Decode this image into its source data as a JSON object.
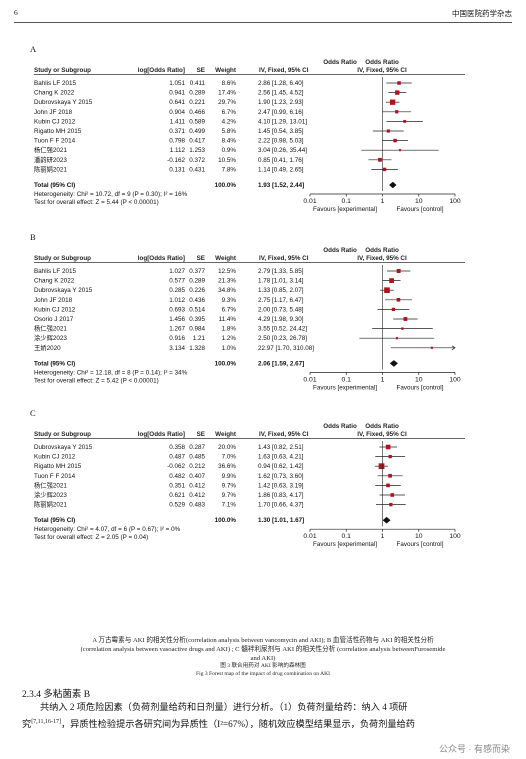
{
  "header": {
    "page_number": "6",
    "journal": "中国医院药学杂志"
  },
  "forest_columns": {
    "study": "Study or Subgroup",
    "log_or": "log[Odds Ratio]",
    "se": "SE",
    "weight": "Weight",
    "or_title": "Odds Ratio",
    "or_method": "IV, Fixed, 95% CI",
    "axis_ticks": [
      "0.01",
      "0.1",
      "1",
      "10",
      "100"
    ],
    "favours_left": "Favours [experimental]",
    "favours_right": "Favours [control]"
  },
  "chart_data": [
    {
      "type": "forest",
      "panel": "A",
      "scale": "log",
      "xlim": [
        0.01,
        100
      ],
      "studies": [
        {
          "name": "Bahlis LF 2015",
          "log_or": "1.051",
          "se": "0.411",
          "weight": "8.6%",
          "ci": "2.86 [1.28, 6.40]",
          "or": 2.86,
          "lo": 1.28,
          "hi": 6.4,
          "w": 8.6
        },
        {
          "name": "Chang K 2022",
          "log_or": "0.941",
          "se": "0.289",
          "weight": "17.4%",
          "ci": "2.56 [1.45, 4.52]",
          "or": 2.56,
          "lo": 1.45,
          "hi": 4.52,
          "w": 17.4
        },
        {
          "name": "Dubrovskaya Y 2015",
          "log_or": "0.641",
          "se": "0.221",
          "weight": "29.7%",
          "ci": "1.90 [1.23, 2.93]",
          "or": 1.9,
          "lo": 1.23,
          "hi": 2.93,
          "w": 29.7
        },
        {
          "name": "John JF 2018",
          "log_or": "0.904",
          "se": "0.466",
          "weight": "6.7%",
          "ci": "2.47 [0.99, 6.16]",
          "or": 2.47,
          "lo": 0.99,
          "hi": 6.16,
          "w": 6.7
        },
        {
          "name": "Kubin CJ 2012",
          "log_or": "1.411",
          "se": "0.589",
          "weight": "4.2%",
          "ci": "4.10 [1.29, 13.01]",
          "or": 4.1,
          "lo": 1.29,
          "hi": 13.01,
          "w": 4.2
        },
        {
          "name": "Rigatto MH 2015",
          "log_or": "0.371",
          "se": "0.499",
          "weight": "5.8%",
          "ci": "1.45 [0.54, 3.85]",
          "or": 1.45,
          "lo": 0.54,
          "hi": 3.85,
          "w": 5.8
        },
        {
          "name": "Tuon F F 2014",
          "log_or": "0.798",
          "se": "0.417",
          "weight": "8.4%",
          "ci": "2.22 [0.98, 5.03]",
          "or": 2.22,
          "lo": 0.98,
          "hi": 5.03,
          "w": 8.4
        },
        {
          "name": "杨仁强2021",
          "log_or": "1.112",
          "se": "1.253",
          "weight": "0.9%",
          "ci": "3.04 [0.26, 35.44]",
          "or": 3.04,
          "lo": 0.26,
          "hi": 35.44,
          "w": 0.9
        },
        {
          "name": "潘韵研2023",
          "log_or": "-0.162",
          "se": "0.372",
          "weight": "10.5%",
          "ci": "0.85 [0.41, 1.76]",
          "or": 0.85,
          "lo": 0.41,
          "hi": 1.76,
          "w": 10.5
        },
        {
          "name": "陈丽娟2021",
          "log_or": "0.131",
          "se": "0.431",
          "weight": "7.8%",
          "ci": "1.14 [0.49, 2.65]",
          "or": 1.14,
          "lo": 0.49,
          "hi": 2.65,
          "w": 7.8
        }
      ],
      "total": {
        "label": "Total (95% CI)",
        "weight": "100.0%",
        "ci": "1.93 [1.52, 2.44]",
        "or": 1.93,
        "lo": 1.52,
        "hi": 2.44
      },
      "heterogeneity": "Heterogeneity: Chi² = 10.72, df = 9 (P = 0.30); I² = 16%",
      "overall_effect": "Test for overall effect: Z = 5.44 (P < 0.00001)"
    },
    {
      "type": "forest",
      "panel": "B",
      "scale": "log",
      "xlim": [
        0.01,
        100
      ],
      "studies": [
        {
          "name": "Bahlis LF 2015",
          "log_or": "1.027",
          "se": "0.377",
          "weight": "12.5%",
          "ci": "2.79 [1.33, 5.85]",
          "or": 2.79,
          "lo": 1.33,
          "hi": 5.85,
          "w": 12.5
        },
        {
          "name": "Chang K 2022",
          "log_or": "0.577",
          "se": "0.289",
          "weight": "21.3%",
          "ci": "1.78 [1.01, 3.14]",
          "or": 1.78,
          "lo": 1.01,
          "hi": 3.14,
          "w": 21.3
        },
        {
          "name": "Dubrovskaya Y 2015",
          "log_or": "0.285",
          "se": "0.226",
          "weight": "34.8%",
          "ci": "1.33 [0.85, 2.07]",
          "or": 1.33,
          "lo": 0.85,
          "hi": 2.07,
          "w": 34.8
        },
        {
          "name": "John JF 2018",
          "log_or": "1.012",
          "se": "0.436",
          "weight": "9.3%",
          "ci": "2.75 [1.17, 6.47]",
          "or": 2.75,
          "lo": 1.17,
          "hi": 6.47,
          "w": 9.3
        },
        {
          "name": "Kubin CJ 2012",
          "log_or": "0.693",
          "se": "0.514",
          "weight": "6.7%",
          "ci": "2.00 [0.73, 5.48]",
          "or": 2.0,
          "lo": 0.73,
          "hi": 5.48,
          "w": 6.7
        },
        {
          "name": "Osorio J 2017",
          "log_or": "1.456",
          "se": "0.395",
          "weight": "11.4%",
          "ci": "4.29 [1.98, 9.30]",
          "or": 4.29,
          "lo": 1.98,
          "hi": 9.3,
          "w": 11.4
        },
        {
          "name": "杨仁强2021",
          "log_or": "1.267",
          "se": "0.984",
          "weight": "1.8%",
          "ci": "3.55 [0.52, 24.42]",
          "or": 3.55,
          "lo": 0.52,
          "hi": 24.42,
          "w": 1.8
        },
        {
          "name": "涂少辉2023",
          "log_or": "0.916",
          "se": "1.21",
          "weight": "1.2%",
          "ci": "2.50 [0.23, 26.78]",
          "or": 2.5,
          "lo": 0.23,
          "hi": 26.78,
          "w": 1.2
        },
        {
          "name": "王娇2020",
          "log_or": "3.134",
          "se": "1.328",
          "weight": "1.0%",
          "ci": "22.97 [1.70, 310.08]",
          "or": 22.97,
          "lo": 1.7,
          "hi": 310.08,
          "w": 1.0
        }
      ],
      "total": {
        "label": "Total (95% CI)",
        "weight": "100.0%",
        "ci": "2.06 [1.59, 2.67]",
        "or": 2.06,
        "lo": 1.59,
        "hi": 2.67
      },
      "heterogeneity": "Heterogeneity: Chi² = 12.18, df = 8 (P = 0.14); I² = 34%",
      "overall_effect": "Test for overall effect: Z = 5.42 (P < 0.00001)"
    },
    {
      "type": "forest",
      "panel": "C",
      "scale": "log",
      "xlim": [
        0.01,
        100
      ],
      "studies": [
        {
          "name": "Dubrovskaya Y 2015",
          "log_or": "0.358",
          "se": "0.287",
          "weight": "20.0%",
          "ci": "1.43 [0.82, 2.51]",
          "or": 1.43,
          "lo": 0.82,
          "hi": 2.51,
          "w": 20.0
        },
        {
          "name": "Kubin CJ 2012",
          "log_or": "0.487",
          "se": "0.485",
          "weight": "7.0%",
          "ci": "1.63 [0.63, 4.21]",
          "or": 1.63,
          "lo": 0.63,
          "hi": 4.21,
          "w": 7.0
        },
        {
          "name": "Rigatto MH 2015",
          "log_or": "-0.062",
          "se": "0.212",
          "weight": "36.6%",
          "ci": "0.94 [0.62, 1.42]",
          "or": 0.94,
          "lo": 0.62,
          "hi": 1.42,
          "w": 36.6
        },
        {
          "name": "Tuon F F 2014",
          "log_or": "0.482",
          "se": "0.407",
          "weight": "9.9%",
          "ci": "1.62 [0.73, 3.60]",
          "or": 1.62,
          "lo": 0.73,
          "hi": 3.6,
          "w": 9.9
        },
        {
          "name": "杨仁强2021",
          "log_or": "0.351",
          "se": "0.412",
          "weight": "9.7%",
          "ci": "1.42 [0.63, 3.19]",
          "or": 1.42,
          "lo": 0.63,
          "hi": 3.19,
          "w": 9.7
        },
        {
          "name": "涂少辉2023",
          "log_or": "0.621",
          "se": "0.412",
          "weight": "9.7%",
          "ci": "1.86 [0.83, 4.17]",
          "or": 1.86,
          "lo": 0.83,
          "hi": 4.17,
          "w": 9.7
        },
        {
          "name": "陈丽娟2021",
          "log_or": "0.529",
          "se": "0.483",
          "weight": "7.1%",
          "ci": "1.70 [0.66, 4.37]",
          "or": 1.7,
          "lo": 0.66,
          "hi": 4.37,
          "w": 7.1
        }
      ],
      "total": {
        "label": "Total (95% CI)",
        "weight": "100.0%",
        "ci": "1.30 [1.01, 1.67]",
        "or": 1.3,
        "lo": 1.01,
        "hi": 1.67
      },
      "heterogeneity": "Heterogeneity: Chi² = 4.07, df = 6 (P = 0.67); I² = 0%",
      "overall_effect": "Test for overall effect: Z = 2.05 (P = 0.04)"
    }
  ],
  "caption": {
    "subcaption_1": "A 万古霉素与 AKI 的相关性分析(correlation analysis between vancomycin and AKI); B 血管活性药物与 AKI 的相关性分析",
    "subcaption_2": "(correlation analysis between vasoactive drugs and AKI) ; C 髓袢利尿剂与 AKI 的相关性分析 (correlation analysis betweenFurosemide",
    "subcaption_3": "and AKI)",
    "title_cn": "图 3 联合用药对 AKI 影响的森林图",
    "title_en": "Fig 3 Forest map of the impact of drug combination on AKI"
  },
  "section": {
    "heading": "2.3.4 多粘菌素 B",
    "p1": "共纳入 2 项危险因素（负荷剂量给药和日剂量）进行分析。（1）负荷剂量给药：纳入 4 项研",
    "p2_pre": "究",
    "p2_ref": "[7,11,16-17]",
    "p2_post": "，异质性检验提示各研究间为异质性（I²=67%），随机效应模型结果显示，负荷剂量给药"
  },
  "watermark": "公众号 · 有感而染"
}
